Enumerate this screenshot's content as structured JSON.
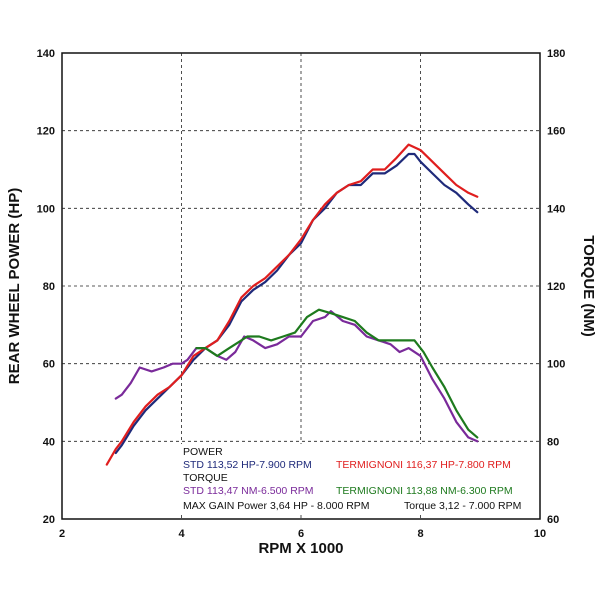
{
  "chart_data": {
    "type": "line",
    "xlabel": "RPM X 1000",
    "ylabel": "REAR WHEEL POWER (HP)",
    "y2label": "TORQUE (NM)",
    "xlim": [
      2,
      10
    ],
    "ylim": [
      20,
      140
    ],
    "y2lim": [
      60,
      180
    ],
    "x_ticks": [
      "2",
      "4",
      "6",
      "8",
      "10"
    ],
    "y_ticks": [
      "20",
      "40",
      "60",
      "80",
      "100",
      "120",
      "140"
    ],
    "y2_ticks": [
      "60",
      "80",
      "100",
      "120",
      "140",
      "160",
      "180"
    ],
    "grid": true,
    "legend_position": "bottom-center",
    "colors": {
      "std_power": "#1f2a7a",
      "termignoni_power": "#e01e1e",
      "std_torque": "#7a2a9a",
      "termignoni_torque": "#1e7a1e",
      "axis": "#111111",
      "grid": "#222222"
    },
    "legend": {
      "power_heading": "POWER",
      "torque_heading": "TORQUE",
      "std_power": "STD 113,52 HP-7.900 RPM",
      "termignoni_power": "TERMIGNONI 116,37 HP-7.800 RPM",
      "std_torque": "STD 113,47 NM-6.500 RPM",
      "termignoni_torque": "TERMIGNONI 113,88 NM-6.300 RPM",
      "max_gain_power": "MAX GAIN Power 3,64 HP - 8.000 RPM",
      "max_gain_torque": "Torque 3,12 - 7.000 RPM"
    },
    "series": [
      {
        "name": "STD 113,52 HP-7.900 RPM",
        "color_key": "std_power",
        "axis": "left",
        "points": [
          [
            2.9,
            37
          ],
          [
            3.0,
            39
          ],
          [
            3.2,
            44
          ],
          [
            3.4,
            48
          ],
          [
            3.6,
            51
          ],
          [
            3.8,
            54
          ],
          [
            4.0,
            57
          ],
          [
            4.2,
            61
          ],
          [
            4.4,
            64
          ],
          [
            4.6,
            66
          ],
          [
            4.8,
            70
          ],
          [
            5.0,
            76
          ],
          [
            5.2,
            79
          ],
          [
            5.4,
            81
          ],
          [
            5.6,
            84
          ],
          [
            5.8,
            88
          ],
          [
            6.0,
            91
          ],
          [
            6.2,
            97
          ],
          [
            6.4,
            100
          ],
          [
            6.6,
            104
          ],
          [
            6.8,
            106
          ],
          [
            7.0,
            106
          ],
          [
            7.2,
            109
          ],
          [
            7.4,
            109
          ],
          [
            7.6,
            111
          ],
          [
            7.8,
            114
          ],
          [
            7.9,
            114
          ],
          [
            8.0,
            112
          ],
          [
            8.2,
            109
          ],
          [
            8.4,
            106
          ],
          [
            8.6,
            104
          ],
          [
            8.8,
            101
          ],
          [
            8.95,
            99
          ]
        ]
      },
      {
        "name": "TERMIGNONI 116,37 HP-7.800 RPM",
        "color_key": "termignoni_power",
        "axis": "left",
        "points": [
          [
            2.75,
            34
          ],
          [
            2.9,
            38
          ],
          [
            3.0,
            40
          ],
          [
            3.2,
            45
          ],
          [
            3.4,
            49
          ],
          [
            3.6,
            52
          ],
          [
            3.8,
            54
          ],
          [
            4.0,
            57
          ],
          [
            4.2,
            62
          ],
          [
            4.4,
            64
          ],
          [
            4.6,
            66
          ],
          [
            4.8,
            71
          ],
          [
            5.0,
            77
          ],
          [
            5.2,
            80
          ],
          [
            5.4,
            82
          ],
          [
            5.6,
            85
          ],
          [
            5.8,
            88
          ],
          [
            6.0,
            92
          ],
          [
            6.2,
            97
          ],
          [
            6.4,
            101
          ],
          [
            6.6,
            104
          ],
          [
            6.8,
            106
          ],
          [
            7.0,
            107
          ],
          [
            7.2,
            110
          ],
          [
            7.4,
            110
          ],
          [
            7.6,
            113
          ],
          [
            7.8,
            116.4
          ],
          [
            8.0,
            115
          ],
          [
            8.2,
            112
          ],
          [
            8.4,
            109
          ],
          [
            8.6,
            106
          ],
          [
            8.8,
            104
          ],
          [
            8.95,
            103
          ]
        ]
      },
      {
        "name": "STD 113,47 NM-6.500 RPM",
        "color_key": "std_torque",
        "axis": "right",
        "points": [
          [
            2.9,
            91
          ],
          [
            3.0,
            92
          ],
          [
            3.15,
            95
          ],
          [
            3.3,
            99
          ],
          [
            3.5,
            98
          ],
          [
            3.7,
            99
          ],
          [
            3.85,
            100
          ],
          [
            4.0,
            100
          ],
          [
            4.1,
            101
          ],
          [
            4.25,
            104
          ],
          [
            4.4,
            104
          ],
          [
            4.6,
            102
          ],
          [
            4.75,
            101
          ],
          [
            4.9,
            103
          ],
          [
            5.05,
            107
          ],
          [
            5.2,
            106
          ],
          [
            5.4,
            104
          ],
          [
            5.6,
            105
          ],
          [
            5.8,
            107
          ],
          [
            6.0,
            107
          ],
          [
            6.2,
            111
          ],
          [
            6.4,
            112
          ],
          [
            6.5,
            113.5
          ],
          [
            6.7,
            111
          ],
          [
            6.9,
            110
          ],
          [
            7.1,
            107
          ],
          [
            7.3,
            106
          ],
          [
            7.5,
            105
          ],
          [
            7.65,
            103
          ],
          [
            7.8,
            104
          ],
          [
            8.0,
            102
          ],
          [
            8.2,
            96
          ],
          [
            8.4,
            91
          ],
          [
            8.6,
            85
          ],
          [
            8.8,
            81
          ],
          [
            8.95,
            80
          ]
        ]
      },
      {
        "name": "TERMIGNONI 113,88 NM-6.300 RPM",
        "color_key": "termignoni_torque",
        "axis": "right",
        "points": [
          [
            4.25,
            104
          ],
          [
            4.4,
            104
          ],
          [
            4.6,
            102
          ],
          [
            4.8,
            104
          ],
          [
            5.0,
            106
          ],
          [
            5.1,
            107
          ],
          [
            5.3,
            107
          ],
          [
            5.5,
            106
          ],
          [
            5.7,
            107
          ],
          [
            5.9,
            108
          ],
          [
            6.1,
            112
          ],
          [
            6.3,
            113.9
          ],
          [
            6.5,
            113
          ],
          [
            6.7,
            112
          ],
          [
            6.9,
            111
          ],
          [
            7.1,
            108
          ],
          [
            7.3,
            106
          ],
          [
            7.5,
            106
          ],
          [
            7.7,
            106
          ],
          [
            7.9,
            106
          ],
          [
            8.05,
            103
          ],
          [
            8.2,
            99
          ],
          [
            8.4,
            94
          ],
          [
            8.6,
            88
          ],
          [
            8.8,
            83
          ],
          [
            8.95,
            81
          ]
        ]
      }
    ]
  }
}
